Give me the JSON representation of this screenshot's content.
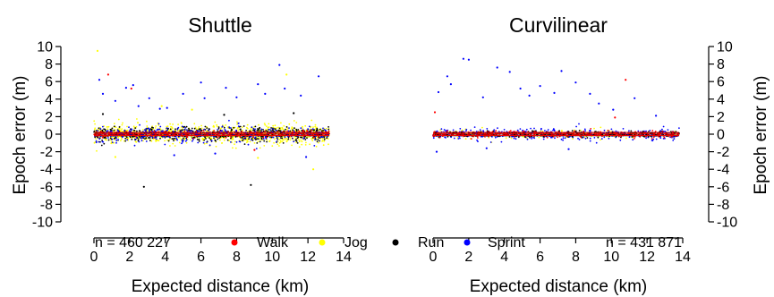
{
  "chart_data": [
    {
      "type": "scatter",
      "title": "Shuttle",
      "xlabel": "Expected distance (km)",
      "ylabel": "Epoch error (m)",
      "xlim": [
        0,
        14
      ],
      "ylim": [
        -10,
        10
      ],
      "xticks": [
        "0",
        "2",
        "4",
        "6",
        "8",
        "10",
        "12",
        "14"
      ],
      "yticks": [
        "10",
        "8",
        "6",
        "4",
        "2",
        "0",
        "-2",
        "-4",
        "-6",
        "-8",
        "-10"
      ],
      "x_data_max": 13.2,
      "annotation": "n = 460 227",
      "series": [
        {
          "name": "Walk",
          "color": "#ff0000",
          "spread": 0.3,
          "outliers": [
            [
              0.8,
              6.8
            ],
            [
              2.1,
              5.2
            ],
            [
              9.0,
              -1.8
            ]
          ]
        },
        {
          "name": "Jog",
          "color": "#ffff00",
          "spread": 1.0,
          "outliers": [
            [
              0.2,
              9.5
            ],
            [
              1.2,
              -2.6
            ],
            [
              5.5,
              2.8
            ],
            [
              9.2,
              -2.7
            ],
            [
              10.8,
              6.8
            ],
            [
              12.3,
              -4.0
            ],
            [
              3.8,
              3.2
            ]
          ]
        },
        {
          "name": "Run",
          "color": "#000000",
          "spread": 0.7,
          "outliers": [
            [
              2.8,
              -6.0
            ],
            [
              8.8,
              -5.8
            ],
            [
              0.5,
              2.3
            ],
            [
              7.3,
              2.2
            ],
            [
              11.2,
              2.4
            ]
          ]
        },
        {
          "name": "Sprint",
          "color": "#0000ff",
          "spread": 0.9,
          "outliers": [
            [
              0.3,
              6.2
            ],
            [
              0.5,
              4.6
            ],
            [
              1.2,
              3.8
            ],
            [
              1.8,
              5.3
            ],
            [
              2.2,
              5.6
            ],
            [
              2.5,
              3.2
            ],
            [
              3.1,
              4.1
            ],
            [
              3.7,
              2.9
            ],
            [
              4.1,
              3.0
            ],
            [
              5.0,
              4.6
            ],
            [
              6.0,
              5.9
            ],
            [
              6.2,
              4.1
            ],
            [
              7.4,
              5.3
            ],
            [
              8.0,
              4.2
            ],
            [
              9.2,
              5.7
            ],
            [
              9.6,
              4.6
            ],
            [
              10.4,
              7.9
            ],
            [
              10.7,
              5.2
            ],
            [
              11.6,
              4.4
            ],
            [
              12.6,
              6.6
            ],
            [
              4.5,
              -2.4
            ],
            [
              6.8,
              -2.2
            ],
            [
              11.9,
              -2.6
            ]
          ]
        }
      ]
    },
    {
      "type": "scatter",
      "title": "Curvilinear",
      "xlabel": "Expected distance (km)",
      "ylabel": "Epoch error (m)",
      "xlim": [
        0,
        14
      ],
      "ylim": [
        -10,
        10
      ],
      "xticks": [
        "0",
        "2",
        "4",
        "6",
        "8",
        "10",
        "12",
        "14"
      ],
      "yticks": [
        "10",
        "8",
        "6",
        "4",
        "2",
        "0",
        "-2",
        "-4",
        "-6",
        "-8",
        "-10"
      ],
      "x_data_max": 13.8,
      "annotation": "n = 431 871",
      "series": [
        {
          "name": "Walk",
          "color": "#ff0000",
          "spread": 0.3,
          "outliers": [
            [
              0.1,
              2.5
            ],
            [
              10.8,
              6.2
            ],
            [
              10.2,
              1.9
            ]
          ]
        },
        {
          "name": "Jog",
          "color": "#ffff00",
          "spread": 0.5,
          "outliers": []
        },
        {
          "name": "Run",
          "color": "#000000",
          "spread": 0.3,
          "outliers": []
        },
        {
          "name": "Sprint",
          "color": "#0000ff",
          "spread": 0.6,
          "outliers": [
            [
              0.3,
              4.8
            ],
            [
              0.8,
              6.6
            ],
            [
              1.0,
              5.7
            ],
            [
              1.7,
              8.6
            ],
            [
              2.0,
              8.5
            ],
            [
              2.8,
              4.2
            ],
            [
              3.6,
              7.6
            ],
            [
              4.3,
              7.1
            ],
            [
              4.9,
              5.2
            ],
            [
              5.4,
              4.4
            ],
            [
              6.0,
              5.5
            ],
            [
              6.8,
              4.7
            ],
            [
              7.2,
              7.2
            ],
            [
              8.0,
              5.9
            ],
            [
              8.8,
              4.6
            ],
            [
              9.3,
              3.5
            ],
            [
              10.1,
              2.8
            ],
            [
              11.3,
              4.1
            ],
            [
              12.5,
              2.1
            ],
            [
              0.2,
              -2.0
            ],
            [
              3.0,
              -1.6
            ],
            [
              7.6,
              -1.7
            ]
          ]
        }
      ]
    }
  ]
}
